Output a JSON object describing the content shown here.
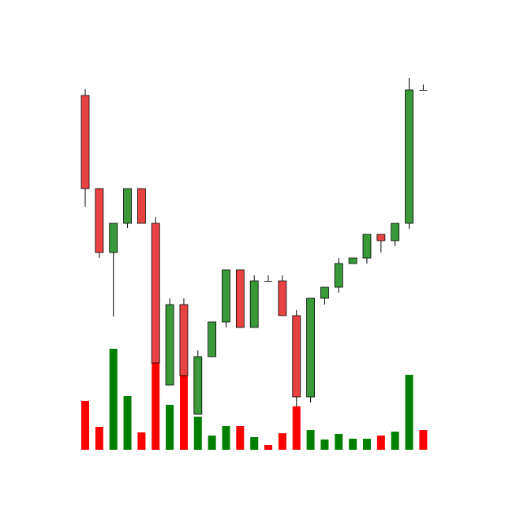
{
  "chart_data": {
    "type": "candlestick",
    "open": [
      519,
      401,
      320,
      357,
      401,
      357,
      152,
      254,
      115,
      188,
      232,
      298,
      225,
      284,
      284,
      240,
      137,
      262,
      276,
      306,
      313,
      343,
      335,
      357,
      526
    ],
    "high": [
      527,
      401,
      357,
      401,
      401,
      365,
      262,
      262,
      196,
      232,
      298,
      298,
      291,
      291,
      291,
      247,
      262,
      276,
      313,
      313,
      343,
      343,
      357,
      541,
      533
    ],
    "low": [
      378,
      313,
      239,
      351,
      357,
      180,
      152,
      164,
      115,
      188,
      225,
      225,
      225,
      284,
      240,
      125,
      130,
      254,
      269,
      306,
      306,
      320,
      328,
      350,
      526
    ],
    "close": [
      401,
      320,
      357,
      401,
      357,
      180,
      254,
      164,
      188,
      232,
      298,
      225,
      284,
      284,
      240,
      137,
      262,
      276,
      306,
      313,
      343,
      335,
      357,
      526,
      526
    ],
    "volume": [
      62,
      29,
      128,
      68,
      22,
      116,
      57,
      95,
      42,
      18,
      30,
      30,
      16,
      6,
      21,
      55,
      25,
      13,
      20,
      14,
      14,
      18,
      23,
      95,
      25
    ],
    "ylim": [
      0,
      640
    ],
    "y2lim": [
      0,
      570
    ],
    "up_color": "#3a9a3a",
    "down_color": "#e84343",
    "volume_up_color": "#008000",
    "volume_down_color": "#ff0000"
  }
}
